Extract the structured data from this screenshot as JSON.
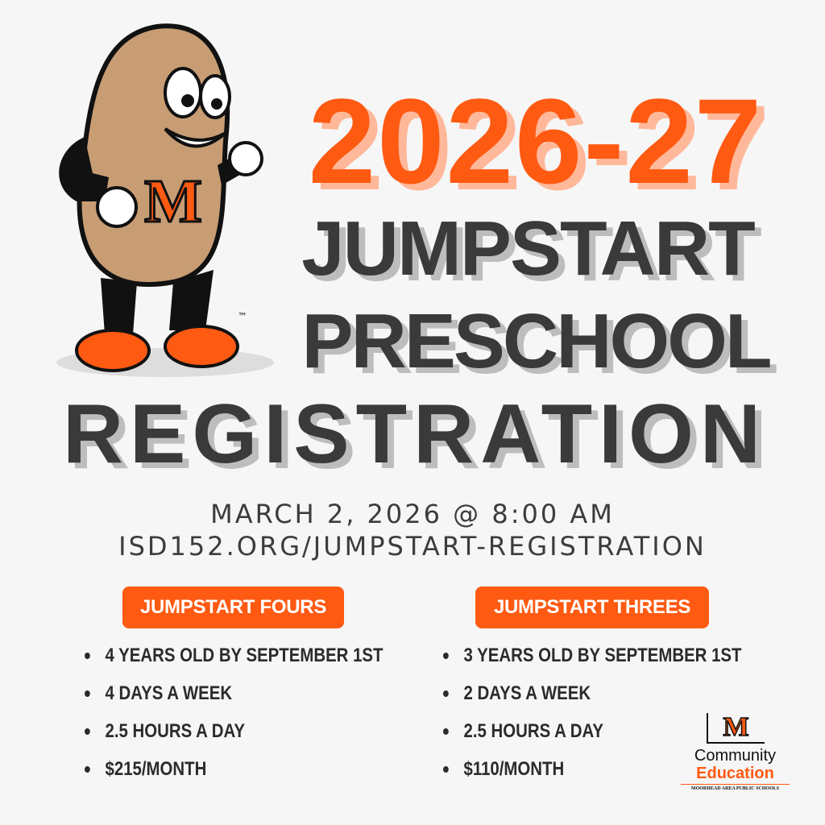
{
  "title": {
    "year": "2026-27",
    "line1": "JUMPSTART",
    "line2": "PRESCHOOL",
    "line3": "REGISTRATION"
  },
  "date": "MARCH 2, 2026 @ 8:00 AM",
  "url": "ISD152.ORG/JUMPSTART-REGISTRATION",
  "programs": [
    {
      "name": "JUMPSTART FOURS",
      "items": [
        "4 YEARS OLD BY SEPTEMBER 1ST",
        "4 DAYS A WEEK",
        "2.5 HOURS A DAY",
        "$215/MONTH"
      ]
    },
    {
      "name": "JUMPSTART THREES",
      "items": [
        "3 YEARS OLD BY SEPTEMBER 1ST",
        "2 DAYS A WEEK",
        "2.5 HOURS A DAY",
        "$110/MONTH"
      ]
    }
  ],
  "logo": {
    "mark": "M",
    "line1": "Community",
    "line2": "Education",
    "line3": "MOORHEAD AREA PUBLIC SCHOOLS"
  },
  "mascot": {
    "letter": "M",
    "trademark": "™"
  },
  "colors": {
    "accent": "#ff5a12",
    "text": "#3a3a3a",
    "background": "#f6f6f6"
  }
}
